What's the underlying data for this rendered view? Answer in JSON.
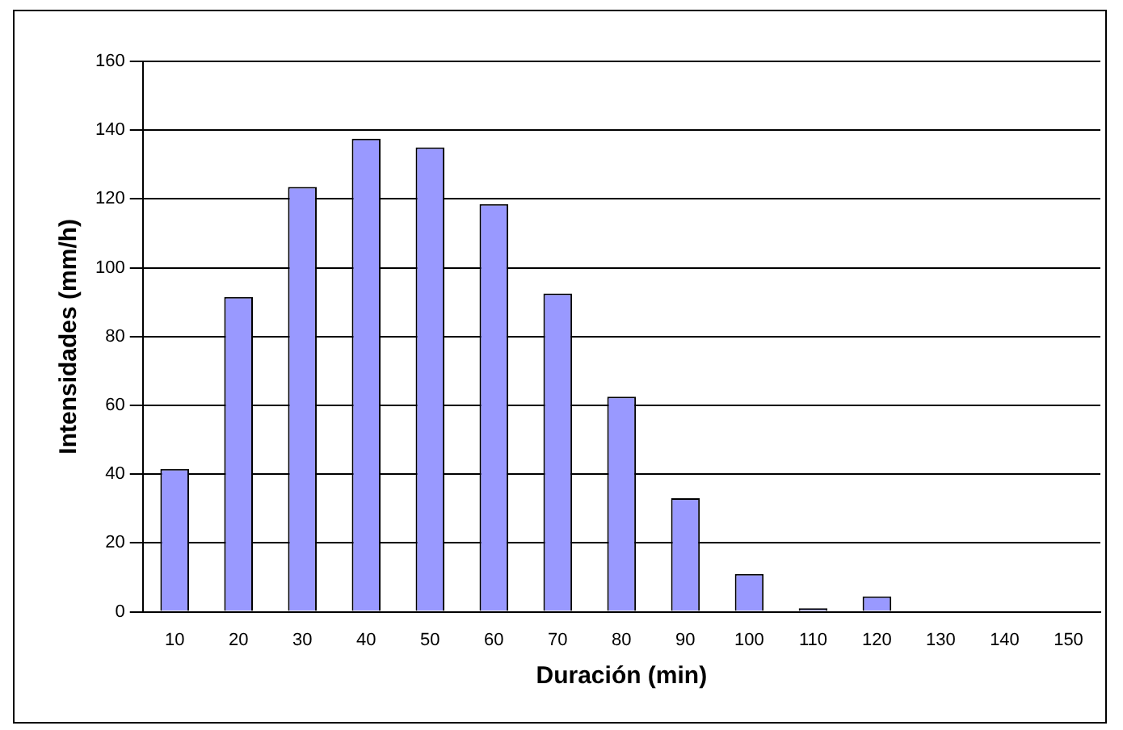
{
  "chart_data": {
    "type": "bar",
    "xlabel": "Duración (min)",
    "ylabel": "Intensidades (mm/h)",
    "categories": [
      "10",
      "20",
      "30",
      "40",
      "50",
      "60",
      "70",
      "80",
      "90",
      "100",
      "110",
      "120",
      "130",
      "140",
      "150"
    ],
    "values": [
      41.5,
      91.5,
      123.5,
      137.5,
      135,
      118.5,
      92.5,
      62.5,
      33,
      11,
      1,
      4.5,
      0,
      0,
      0
    ],
    "color": "#9999ff",
    "ylim": [
      0,
      160
    ],
    "yticks": [
      0,
      20,
      40,
      60,
      80,
      100,
      120,
      140,
      160
    ],
    "grid": "y",
    "legend": false
  }
}
